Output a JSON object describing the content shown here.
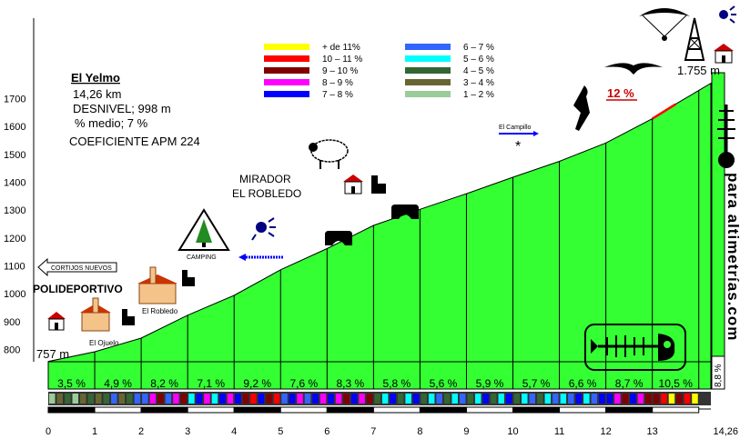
{
  "info": {
    "title": "El Yelmo",
    "distance": "14,26 km",
    "desnivel": "DESNIVEL; 998 m",
    "medio": "% medio; 7 %",
    "coeficiente": "COEFICIENTE APM 224"
  },
  "legend": [
    {
      "label": "+ de 11%",
      "color": "#ffff00"
    },
    {
      "label": "10 – 11 %",
      "color": "#ff0000"
    },
    {
      "label": "9 – 10 %",
      "color": "#800000"
    },
    {
      "label": "8 – 9 %",
      "color": "#ff00ff"
    },
    {
      "label": "7 – 8 %",
      "color": "#0000ff"
    },
    {
      "label": "6 – 7 %",
      "color": "#3366ff"
    },
    {
      "label": "5 – 6 %",
      "color": "#00ffff"
    },
    {
      "label": "4 – 5 %",
      "color": "#336633"
    },
    {
      "label": "3 – 4 %",
      "color": "#666633"
    },
    {
      "label": "1 – 2 %",
      "color": "#99cc99"
    }
  ],
  "labels": {
    "start_alt": "757 m",
    "end_alt": "1.755 m",
    "steep": "12 %",
    "mirador_1": "MIRADOR",
    "mirador_2": "EL ROBLEDO",
    "campillo": "El Campillo",
    "camping": "CAMPING",
    "cortijos": "CORTIJOS NUEVOS",
    "polideportivo": "POLIDEPORTIVO",
    "el_robledo": "El Robledo",
    "el_ojuelo": "El Ojuelo",
    "right_box": "8,8 %",
    "site": "para altimetrías.com"
  },
  "icons": [
    "house-icon",
    "church-icon",
    "mountain-hut-icon",
    "tent-icon",
    "sun-icon",
    "sheep-icon",
    "cave-icon",
    "goat-icon",
    "eagle-icon",
    "paraglider-icon",
    "tower-icon",
    "fish-skeleton-icon"
  ],
  "colors": {
    "profile_fill": "#33ff33",
    "steep_marker": "#ff0000"
  },
  "chart_data": {
    "type": "area",
    "xlabel": "",
    "ylabel": "",
    "xlim": [
      0,
      14.26
    ],
    "ylim": [
      700,
      1760
    ],
    "x_ticks": [
      "0",
      "1",
      "2",
      "3",
      "4",
      "5",
      "6",
      "7",
      "8",
      "9",
      "10",
      "11",
      "12",
      "13",
      "14,26"
    ],
    "y_ticks": [
      800,
      900,
      1000,
      1100,
      1200,
      1300,
      1400,
      1500,
      1600,
      1700
    ],
    "grid": false,
    "km_gradients": [
      3.5,
      4.9,
      8.2,
      7.1,
      9.2,
      7.6,
      8.3,
      5.8,
      5.6,
      5.9,
      5.7,
      6.6,
      8.7,
      10.5
    ],
    "km_gradient_labels": [
      "3,5 %",
      "4,9 %",
      "8,2 %",
      "7,1 %",
      "9,2 %",
      "7,6 %",
      "8,3 %",
      "5,8 %",
      "5,6 %",
      "5,9 %",
      "5,7 %",
      "6,6 %",
      "8,7 %",
      "10,5 %"
    ],
    "distance_km": [
      0,
      1,
      2,
      3,
      4,
      5,
      6,
      7,
      8,
      9,
      10,
      11,
      12,
      13,
      13.5,
      14.26
    ],
    "altitude_m": [
      757,
      792,
      841,
      923,
      994,
      1086,
      1162,
      1245,
      1303,
      1359,
      1418,
      1475,
      1541,
      1628,
      1680,
      1755
    ]
  }
}
